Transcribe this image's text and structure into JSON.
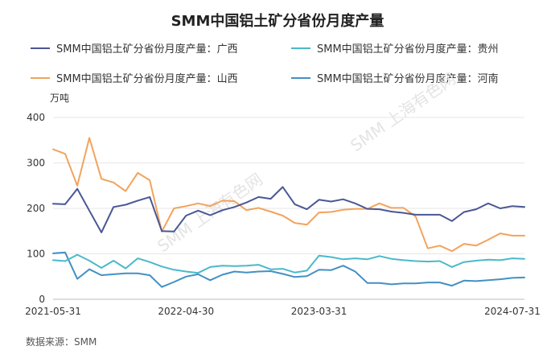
{
  "chart_data": {
    "type": "line",
    "title": "SMM中国铝土矿分省份月度产量",
    "ylabel": "万吨",
    "ylim": [
      0,
      400
    ],
    "yticks": [
      0,
      100,
      200,
      300,
      400
    ],
    "grid": true,
    "legend_placement": "top",
    "x": [
      "2021-05-31",
      "2021-06-30",
      "2021-07-31",
      "2021-08-31",
      "2021-09-30",
      "2021-10-31",
      "2021-11-30",
      "2021-12-31",
      "2022-01-31",
      "2022-02-28",
      "2022-03-31",
      "2022-04-30",
      "2022-05-31",
      "2022-06-30",
      "2022-07-31",
      "2022-08-31",
      "2022-09-30",
      "2022-10-31",
      "2022-11-30",
      "2022-12-31",
      "2023-01-31",
      "2023-02-28",
      "2023-03-31",
      "2023-04-30",
      "2023-05-31",
      "2023-06-30",
      "2023-07-31",
      "2023-08-31",
      "2023-09-30",
      "2023-10-31",
      "2023-11-30",
      "2023-12-31",
      "2024-01-31",
      "2024-02-29",
      "2024-03-31",
      "2024-04-30",
      "2024-05-31",
      "2024-06-30",
      "2024-07-31",
      "2024-08-31"
    ],
    "xtick_labels": [
      "2021-05-31",
      "2022-04-30",
      "2023-03-31",
      "2024-07-31"
    ],
    "series": [
      {
        "name": "SMM中国铝土矿分省份月度产量：广西",
        "color": "#4a5794",
        "values": [
          210,
          209,
          243,
          195,
          147,
          203,
          208,
          217,
          225,
          150,
          149,
          184,
          195,
          185,
          196,
          203,
          213,
          225,
          221,
          247,
          209,
          198,
          219,
          215,
          220,
          211,
          199,
          198,
          193,
          190,
          186,
          186,
          186,
          172,
          192,
          198,
          211,
          200,
          205,
          203
        ]
      },
      {
        "name": "SMM中国铝土矿分省份月度产量：贵州",
        "color": "#4ab9c9",
        "values": [
          86,
          84,
          98,
          85,
          69,
          85,
          68,
          90,
          82,
          72,
          65,
          61,
          58,
          71,
          74,
          73,
          74,
          76,
          66,
          67,
          59,
          63,
          96,
          93,
          88,
          90,
          88,
          95,
          89,
          86,
          84,
          83,
          84,
          71,
          82,
          85,
          87,
          86,
          90,
          89
        ]
      },
      {
        "name": "SMM中国铝土矿分省份月度产量：山西",
        "color": "#f2a35c",
        "values": [
          330,
          320,
          250,
          355,
          265,
          257,
          238,
          278,
          262,
          149,
          200,
          205,
          211,
          205,
          217,
          216,
          196,
          201,
          193,
          184,
          168,
          164,
          191,
          192,
          197,
          199,
          199,
          211,
          201,
          201,
          182,
          112,
          118,
          106,
          122,
          118,
          131,
          145,
          140,
          140
        ]
      },
      {
        "name": "SMM中国铝土矿分省份月度产量：河南",
        "color": "#4390c4",
        "values": [
          101,
          103,
          45,
          66,
          53,
          55,
          57,
          57,
          53,
          27,
          38,
          50,
          55,
          42,
          54,
          61,
          59,
          61,
          62,
          56,
          49,
          51,
          65,
          64,
          74,
          61,
          36,
          36,
          33,
          35,
          35,
          37,
          37,
          30,
          41,
          40,
          42,
          44,
          47,
          48
        ]
      }
    ]
  },
  "watermark": "SMM 上海有色网",
  "source": "数据来源：SMM"
}
